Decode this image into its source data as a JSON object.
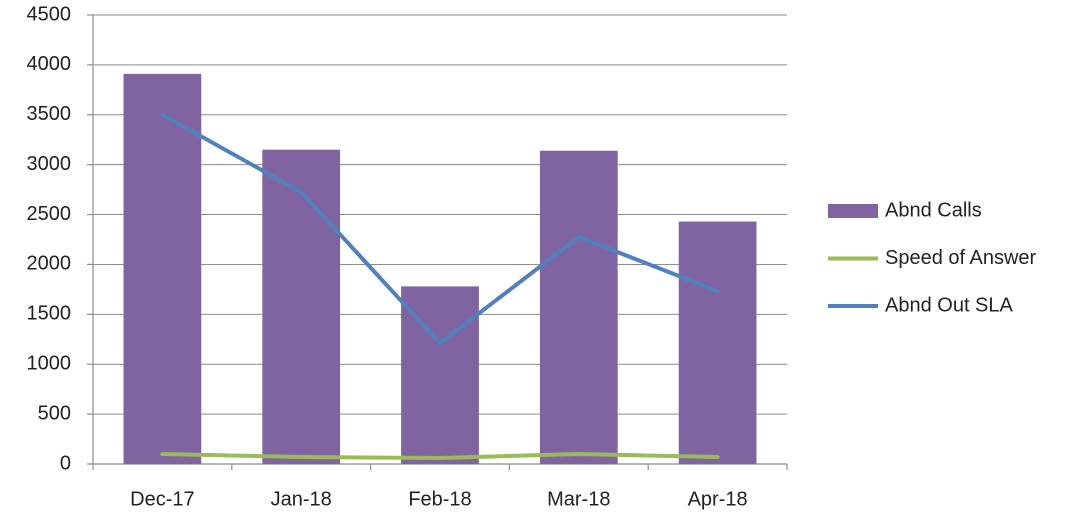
{
  "chart_data": {
    "type": "bar",
    "categories": [
      "Dec-17",
      "Jan-18",
      "Feb-18",
      "Mar-18",
      "Apr-18"
    ],
    "series": [
      {
        "name": "Abnd Calls",
        "type": "bar",
        "color": "#8064a2",
        "values": [
          3910,
          3150,
          1780,
          3140,
          2430
        ]
      },
      {
        "name": "Speed of Answer",
        "type": "line",
        "color": "#9bbb59",
        "values": [
          100,
          70,
          60,
          100,
          70
        ]
      },
      {
        "name": "Abnd Out SLA",
        "type": "line",
        "color": "#4f81bd",
        "values": [
          3500,
          2725,
          1212,
          2275,
          1733
        ]
      }
    ],
    "ylim": [
      0,
      4500
    ],
    "yticks": [
      0,
      500,
      1000,
      1500,
      2000,
      2500,
      3000,
      3500,
      4000,
      4500
    ],
    "grid": true,
    "legend": "right"
  }
}
